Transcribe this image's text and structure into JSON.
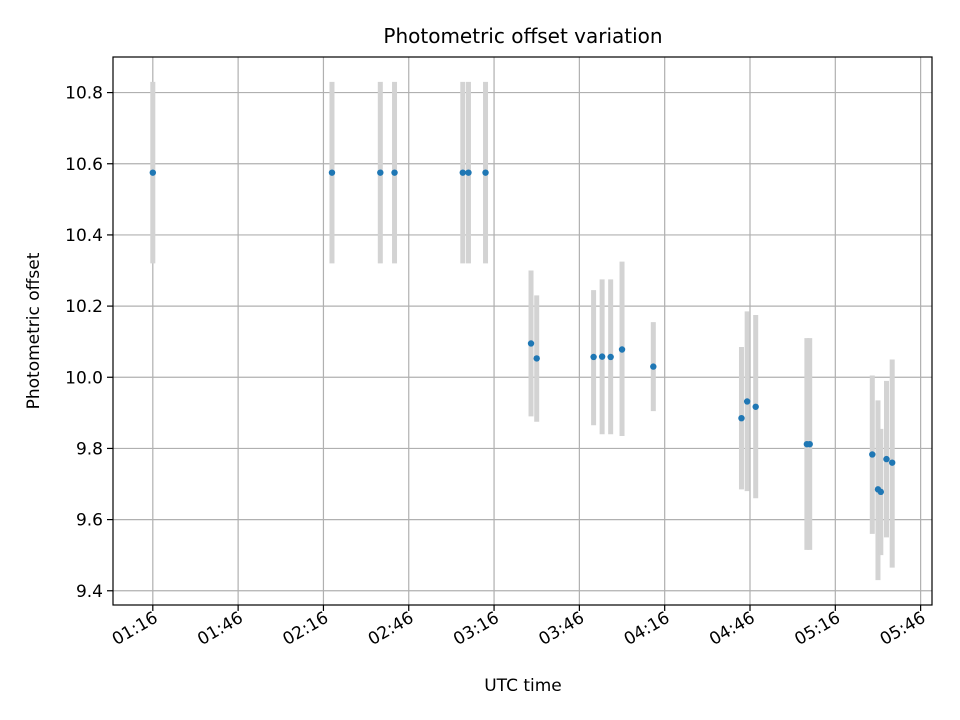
{
  "chart_data": {
    "type": "scatter",
    "title": "Photometric offset variation",
    "xlabel": "UTC time",
    "ylabel": "Photometric offset",
    "x_ticks": [
      "01:16",
      "01:46",
      "02:16",
      "02:46",
      "03:16",
      "03:46",
      "04:16",
      "04:46",
      "05:16",
      "05:46"
    ],
    "y_ticks": [
      "9.4",
      "9.6",
      "9.8",
      "10.0",
      "10.2",
      "10.4",
      "10.6",
      "10.8"
    ],
    "xlim": [
      "01:02",
      "05:50"
    ],
    "ylim": [
      9.36,
      10.9
    ],
    "grid": true,
    "error_bars": true,
    "colors": {
      "points": "#1f77b4",
      "error_bars": "#d3d3d3",
      "grid": "#b0b0b0"
    },
    "points": [
      {
        "x": "01:16",
        "y": 10.575,
        "y_low": 10.32,
        "y_high": 10.83
      },
      {
        "x": "02:19",
        "y": 10.575,
        "y_low": 10.32,
        "y_high": 10.83
      },
      {
        "x": "02:36",
        "y": 10.575,
        "y_low": 10.32,
        "y_high": 10.83
      },
      {
        "x": "02:41",
        "y": 10.575,
        "y_low": 10.32,
        "y_high": 10.83
      },
      {
        "x": "03:05",
        "y": 10.575,
        "y_low": 10.32,
        "y_high": 10.83
      },
      {
        "x": "03:07",
        "y": 10.575,
        "y_low": 10.32,
        "y_high": 10.83
      },
      {
        "x": "03:13",
        "y": 10.575,
        "y_low": 10.32,
        "y_high": 10.83
      },
      {
        "x": "03:29",
        "y": 10.095,
        "y_low": 9.89,
        "y_high": 10.3
      },
      {
        "x": "03:31",
        "y": 10.053,
        "y_low": 9.875,
        "y_high": 10.23
      },
      {
        "x": "03:51",
        "y": 10.057,
        "y_low": 9.865,
        "y_high": 10.245
      },
      {
        "x": "03:54",
        "y": 10.058,
        "y_low": 9.84,
        "y_high": 10.275
      },
      {
        "x": "03:57",
        "y": 10.057,
        "y_low": 9.84,
        "y_high": 10.275
      },
      {
        "x": "04:01",
        "y": 10.078,
        "y_low": 9.835,
        "y_high": 10.325
      },
      {
        "x": "04:12",
        "y": 10.03,
        "y_low": 9.905,
        "y_high": 10.155
      },
      {
        "x": "04:43",
        "y": 9.885,
        "y_low": 9.685,
        "y_high": 10.085
      },
      {
        "x": "04:45",
        "y": 9.932,
        "y_low": 9.68,
        "y_high": 10.185
      },
      {
        "x": "04:48",
        "y": 9.917,
        "y_low": 9.66,
        "y_high": 10.175
      },
      {
        "x": "05:06",
        "y": 9.812,
        "y_low": 9.515,
        "y_high": 10.11
      },
      {
        "x": "05:07",
        "y": 9.812,
        "y_low": 9.515,
        "y_high": 10.11
      },
      {
        "x": "05:29",
        "y": 9.783,
        "y_low": 9.56,
        "y_high": 10.005
      },
      {
        "x": "05:31",
        "y": 9.685,
        "y_low": 9.43,
        "y_high": 9.935
      },
      {
        "x": "05:32",
        "y": 9.678,
        "y_low": 9.5,
        "y_high": 9.855
      },
      {
        "x": "05:34",
        "y": 9.77,
        "y_low": 9.55,
        "y_high": 9.99
      },
      {
        "x": "05:36",
        "y": 9.76,
        "y_low": 9.465,
        "y_high": 10.05
      }
    ]
  }
}
